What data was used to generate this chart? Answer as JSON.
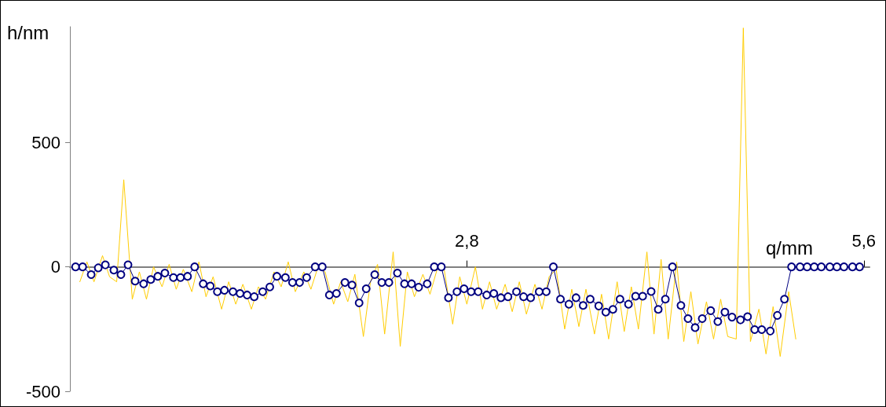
{
  "chart_data": {
    "type": "line",
    "xlabel": "q/mm",
    "ylabel": "h/nm",
    "xlim": [
      0,
      5.64
    ],
    "ylim": [
      -500,
      965
    ],
    "xticks": [
      {
        "value": 2.8,
        "label": "2,8"
      },
      {
        "value": 5.6,
        "label": "5,6"
      }
    ],
    "yticks": [
      -500,
      0,
      500
    ],
    "grid": false,
    "series": [
      {
        "color": "#ffcc00",
        "marker": "none",
        "x": [
          0.07,
          0.12,
          0.17,
          0.23,
          0.28,
          0.33,
          0.38,
          0.44,
          0.49,
          0.54,
          0.59,
          0.65,
          0.7,
          0.75,
          0.8,
          0.86,
          0.91,
          0.96,
          1.01,
          1.07,
          1.12,
          1.17,
          1.22,
          1.28,
          1.33,
          1.38,
          1.44,
          1.49,
          1.54,
          1.59,
          1.65,
          1.7,
          1.75,
          1.8,
          1.86,
          1.91,
          1.96,
          2.01,
          2.07,
          2.12,
          2.17,
          2.22,
          2.28,
          2.33,
          2.38,
          2.43,
          2.49,
          2.54,
          2.59,
          2.64,
          2.7,
          2.75,
          2.8,
          2.86,
          2.91,
          2.96,
          3.01,
          3.07,
          3.12,
          3.17,
          3.22,
          3.28,
          3.33,
          3.38,
          3.43,
          3.49,
          3.54,
          3.59,
          3.64,
          3.7,
          3.75,
          3.8,
          3.86,
          3.91,
          3.96,
          4.01,
          4.07,
          4.12,
          4.17,
          4.22,
          4.28,
          4.33,
          4.38,
          4.43,
          4.49,
          4.54,
          4.59,
          4.64,
          4.7,
          4.75,
          4.8,
          4.86,
          4.91,
          4.96,
          5.01,
          5.07,
          5.12
        ],
        "values": [
          -60,
          20,
          -60,
          45,
          -40,
          -60,
          350,
          -130,
          -20,
          -130,
          0,
          -80,
          10,
          -90,
          -10,
          -100,
          20,
          -120,
          -40,
          -170,
          -60,
          -150,
          -70,
          -170,
          -80,
          -130,
          -20,
          -80,
          20,
          -100,
          -20,
          -90,
          0,
          -20,
          -150,
          -60,
          -140,
          -30,
          -280,
          -60,
          10,
          -270,
          60,
          -320,
          -20,
          -120,
          -30,
          -110,
          -10,
          -10,
          -230,
          -40,
          -150,
          0,
          -170,
          -60,
          -170,
          -70,
          -180,
          -60,
          -190,
          -70,
          -170,
          -40,
          -10,
          -250,
          -90,
          -240,
          -90,
          -270,
          -110,
          -290,
          -60,
          -260,
          -80,
          -250,
          60,
          -270,
          30,
          -290,
          20,
          -300,
          -100,
          -310,
          -140,
          -290,
          -130,
          -280,
          -290,
          960,
          -300,
          -170,
          -350,
          -160,
          -360,
          -100,
          -290
        ]
      },
      {
        "color": "#000080",
        "marker": "circle",
        "x": [
          0.04,
          0.09,
          0.15,
          0.2,
          0.25,
          0.31,
          0.36,
          0.41,
          0.46,
          0.52,
          0.57,
          0.62,
          0.67,
          0.73,
          0.78,
          0.83,
          0.88,
          0.94,
          0.99,
          1.04,
          1.09,
          1.15,
          1.2,
          1.25,
          1.3,
          1.36,
          1.41,
          1.46,
          1.52,
          1.57,
          1.62,
          1.67,
          1.73,
          1.78,
          1.83,
          1.88,
          1.94,
          1.99,
          2.04,
          2.09,
          2.15,
          2.2,
          2.25,
          2.31,
          2.36,
          2.41,
          2.46,
          2.52,
          2.57,
          2.62,
          2.67,
          2.73,
          2.78,
          2.83,
          2.88,
          2.94,
          2.99,
          3.04,
          3.09,
          3.15,
          3.2,
          3.25,
          3.31,
          3.36,
          3.41,
          3.46,
          3.52,
          3.57,
          3.62,
          3.67,
          3.73,
          3.78,
          3.83,
          3.88,
          3.94,
          3.99,
          4.04,
          4.1,
          4.15,
          4.2,
          4.25,
          4.31,
          4.36,
          4.41,
          4.46,
          4.52,
          4.57,
          4.62,
          4.67,
          4.73,
          4.78,
          4.83,
          4.88,
          4.94,
          4.99,
          5.04,
          5.09,
          5.15,
          5.2,
          5.25,
          5.3,
          5.36,
          5.41,
          5.46,
          5.52,
          5.57
        ],
        "values": [
          0,
          0,
          -31,
          -4,
          8,
          -13,
          -31,
          8,
          -57,
          -68,
          -51,
          -38,
          -25,
          -43,
          -43,
          -38,
          0,
          -68,
          -77,
          -100,
          -94,
          -100,
          -107,
          -113,
          -120,
          -100,
          -81,
          -38,
          -43,
          -63,
          -63,
          -43,
          0,
          0,
          -113,
          -107,
          -63,
          -73,
          -145,
          -88,
          -31,
          -63,
          -63,
          -25,
          -68,
          -68,
          -82,
          -68,
          0,
          0,
          -124,
          -100,
          -88,
          -100,
          -100,
          -113,
          -107,
          -124,
          -120,
          -100,
          -120,
          -124,
          -100,
          -100,
          0,
          -130,
          -150,
          -124,
          -155,
          -130,
          -157,
          -182,
          -171,
          -130,
          -150,
          -118,
          -118,
          -99,
          -171,
          -130,
          0,
          -155,
          -208,
          -244,
          -208,
          -176,
          -220,
          -182,
          -202,
          -213,
          -200,
          -252,
          -252,
          -258,
          -195,
          -130,
          0,
          0,
          0,
          0,
          0,
          0,
          0,
          0,
          0,
          0
        ]
      }
    ]
  }
}
